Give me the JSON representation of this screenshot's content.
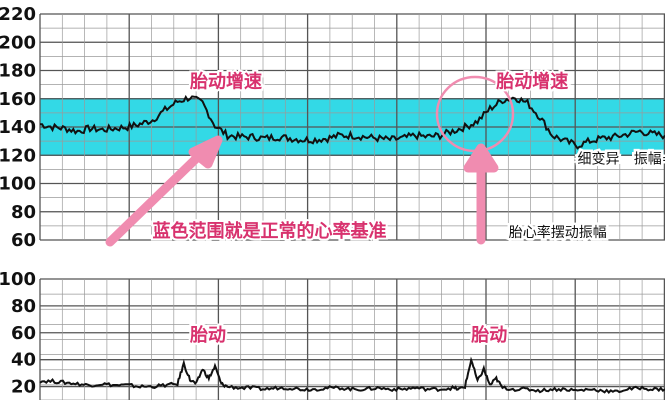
{
  "chart_data": [
    {
      "type": "line",
      "title": "",
      "xlabel": "",
      "ylabel": "",
      "ylim": [
        60,
        220
      ],
      "y_ticks": [
        "220",
        "200",
        "180",
        "160",
        "140",
        "120",
        "100",
        "80",
        "60"
      ],
      "grid": true,
      "normal_band": {
        "from": 120,
        "to": 160,
        "color": "#33d9e6"
      },
      "line_color": "#111111",
      "series": [
        {
          "x": [
            0,
            2,
            4,
            6,
            8,
            10,
            12,
            14,
            16,
            18,
            20,
            22,
            24,
            26,
            28,
            30,
            32,
            34,
            36,
            38,
            40,
            42,
            44,
            46,
            48,
            50,
            52,
            54,
            56,
            58,
            60,
            62,
            64,
            66,
            68,
            70,
            72,
            74,
            76,
            78,
            80,
            82,
            84,
            86,
            88,
            90,
            92,
            94,
            96,
            98,
            100
          ],
          "values": [
            142,
            140,
            139,
            137,
            139,
            138,
            139,
            140,
            142,
            145,
            152,
            158,
            161,
            157,
            141,
            134,
            133,
            133,
            132,
            133,
            132,
            131,
            131,
            132,
            134,
            134,
            133,
            132,
            131,
            132,
            134,
            133,
            134,
            137,
            140,
            144,
            153,
            159,
            161,
            157,
            147,
            134,
            130,
            127,
            130,
            132,
            133,
            135,
            137,
            135,
            134
          ]
        }
      ],
      "annotations": [
        {
          "text": "胎动增速",
          "x": 24,
          "y": 168
        },
        {
          "text": "胎动增速",
          "x": 73,
          "y": 168
        },
        {
          "text": "蓝色范围就是正常的心率基准",
          "x": 18,
          "y": 62
        },
        {
          "text": "胎心率摆动振幅",
          "x": 75,
          "y": 62
        },
        {
          "text": "细变异",
          "x": 86,
          "y": 114
        },
        {
          "text": "振幅=",
          "x": 95,
          "y": 114
        }
      ]
    },
    {
      "type": "line",
      "title": "",
      "xlabel": "",
      "ylabel": "",
      "ylim": [
        10,
        100
      ],
      "y_ticks": [
        "100",
        "80",
        "60",
        "40",
        "20"
      ],
      "grid": true,
      "line_color": "#111111",
      "series": [
        {
          "x": [
            0,
            2,
            4,
            6,
            8,
            10,
            12,
            14,
            16,
            18,
            20,
            22,
            23,
            24,
            25,
            26,
            27,
            28,
            29,
            30,
            32,
            34,
            36,
            38,
            40,
            42,
            44,
            46,
            48,
            50,
            52,
            54,
            56,
            58,
            60,
            62,
            64,
            66,
            67,
            68,
            69,
            70,
            71,
            72,
            73,
            74,
            76,
            78,
            80,
            82,
            84,
            86,
            88,
            90,
            92,
            94,
            96,
            98,
            100
          ],
          "values": [
            24,
            24,
            23,
            22,
            21,
            22,
            21,
            21,
            20,
            20,
            21,
            22,
            37,
            25,
            22,
            33,
            26,
            35,
            22,
            20,
            19,
            19,
            18,
            19,
            19,
            18,
            18,
            19,
            19,
            18,
            18,
            19,
            18,
            18,
            19,
            18,
            18,
            19,
            18,
            20,
            40,
            24,
            33,
            21,
            26,
            19,
            18,
            18,
            17,
            18,
            18,
            17,
            18,
            17,
            16,
            18,
            19,
            18,
            18
          ]
        }
      ],
      "annotations": [
        {
          "text": "胎动",
          "x": 24,
          "y": 54
        },
        {
          "text": "胎动",
          "x": 69,
          "y": 54
        }
      ]
    }
  ]
}
